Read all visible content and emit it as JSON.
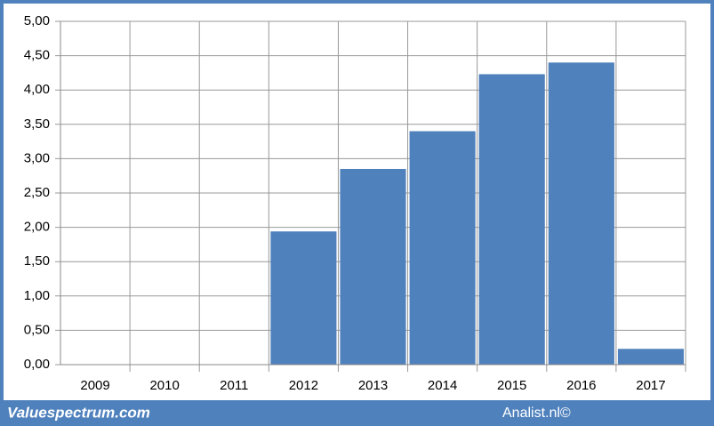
{
  "chart_data": {
    "type": "bar",
    "categories": [
      "2009",
      "2010",
      "2011",
      "2012",
      "2013",
      "2014",
      "2015",
      "2016",
      "2017"
    ],
    "values": [
      null,
      null,
      null,
      1.94,
      2.85,
      3.4,
      4.23,
      4.4,
      0.23
    ],
    "color": "#4f81bd",
    "ylim": [
      0,
      5
    ],
    "yticks": [
      {
        "value": 0,
        "label": "0,00"
      },
      {
        "value": 0.5,
        "label": "0,50"
      },
      {
        "value": 1,
        "label": "1,00"
      },
      {
        "value": 1.5,
        "label": "1,50"
      },
      {
        "value": 2,
        "label": "2,00"
      },
      {
        "value": 2.5,
        "label": "2,50"
      },
      {
        "value": 3,
        "label": "3,00"
      },
      {
        "value": 3.5,
        "label": "3,50"
      },
      {
        "value": 4,
        "label": "4,00"
      },
      {
        "value": 4.5,
        "label": "4,50"
      },
      {
        "value": 5,
        "label": "5,00"
      }
    ],
    "grid": true,
    "footer_left": "Valuespectrum.com",
    "footer_right": "Analist.nl©"
  }
}
